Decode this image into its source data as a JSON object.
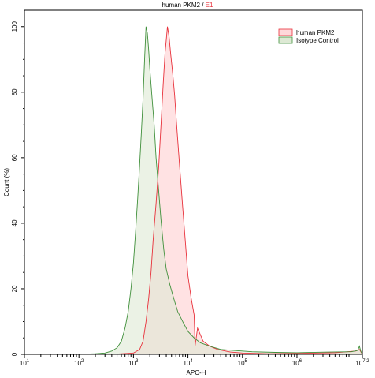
{
  "chart_data": {
    "type": "area",
    "title": {
      "prefix": "human PKM2 / ",
      "highlight": "E1",
      "highlight_color": "#e8303a"
    },
    "xlabel": "APC-H",
    "ylabel": "Count (%)",
    "x_scale": "log",
    "xlim": [
      10,
      15848932
    ],
    "ylim": [
      0,
      105
    ],
    "x_ticks": [
      {
        "value": 10,
        "base": "10",
        "exp": "1"
      },
      {
        "value": 100,
        "base": "10",
        "exp": "2"
      },
      {
        "value": 1000,
        "base": "10",
        "exp": "3"
      },
      {
        "value": 10000,
        "base": "10",
        "exp": "4"
      },
      {
        "value": 100000,
        "base": "10",
        "exp": "5"
      },
      {
        "value": 1000000,
        "base": "10",
        "exp": "6"
      },
      {
        "value": 15848932,
        "base": "10",
        "exp": "7.2"
      }
    ],
    "y_ticks": [
      0,
      20,
      40,
      60,
      80,
      100
    ],
    "legend_position": "top-right",
    "series": [
      {
        "name": "human PKM2",
        "line_color": "#e8303a",
        "fill_color": "#ffd8da",
        "points": [
          [
            10,
            0
          ],
          [
            100,
            0
          ],
          [
            500,
            0.1
          ],
          [
            1000,
            0.4
          ],
          [
            1300,
            1.5
          ],
          [
            1500,
            4
          ],
          [
            1700,
            10
          ],
          [
            1900,
            17
          ],
          [
            2100,
            25
          ],
          [
            2300,
            35
          ],
          [
            2600,
            46
          ],
          [
            2900,
            57
          ],
          [
            3200,
            70
          ],
          [
            3500,
            82
          ],
          [
            3800,
            92
          ],
          [
            4000,
            96
          ],
          [
            4200,
            100
          ],
          [
            4500,
            97
          ],
          [
            4800,
            92
          ],
          [
            5300,
            85
          ],
          [
            5700,
            79
          ],
          [
            6200,
            70
          ],
          [
            7000,
            58
          ],
          [
            8000,
            45
          ],
          [
            9000,
            34
          ],
          [
            10000,
            24
          ],
          [
            11500,
            17
          ],
          [
            13000,
            12
          ],
          [
            15000,
            8
          ],
          [
            19000,
            4
          ],
          [
            25000,
            2.5
          ],
          [
            35000,
            1.5
          ],
          [
            60000,
            0.7
          ],
          [
            100000,
            0.4
          ],
          [
            300000,
            0.2
          ],
          [
            1000000,
            0.3
          ],
          [
            5000000,
            0.5
          ],
          [
            12000000,
            1
          ],
          [
            13500,
            2.5
          ],
          [
            14000000,
            1.5
          ],
          [
            15848932,
            0
          ]
        ]
      },
      {
        "name": "Isotype Control",
        "line_color": "#3f8f3a",
        "fill_color": "#dde9d4",
        "points": [
          [
            10,
            0
          ],
          [
            100,
            0
          ],
          [
            200,
            0.2
          ],
          [
            300,
            0.4
          ],
          [
            400,
            1
          ],
          [
            500,
            2
          ],
          [
            600,
            4
          ],
          [
            700,
            8
          ],
          [
            800,
            13
          ],
          [
            900,
            20
          ],
          [
            1000,
            28
          ],
          [
            1100,
            38
          ],
          [
            1200,
            48
          ],
          [
            1300,
            58
          ],
          [
            1400,
            68
          ],
          [
            1500,
            78
          ],
          [
            1600,
            90
          ],
          [
            1700,
            100
          ],
          [
            1800,
            98
          ],
          [
            1900,
            93
          ],
          [
            2000,
            87
          ],
          [
            2200,
            78
          ],
          [
            2400,
            70
          ],
          [
            2600,
            60
          ],
          [
            2900,
            50
          ],
          [
            3200,
            41
          ],
          [
            3600,
            32
          ],
          [
            4000,
            26
          ],
          [
            4700,
            21
          ],
          [
            5500,
            17
          ],
          [
            6500,
            13
          ],
          [
            8000,
            10
          ],
          [
            10000,
            7
          ],
          [
            13000,
            5
          ],
          [
            17000,
            3.5
          ],
          [
            25000,
            2.5
          ],
          [
            40000,
            1.5
          ],
          [
            70000,
            1.2
          ],
          [
            150000,
            0.8
          ],
          [
            400000,
            0.6
          ],
          [
            1000000,
            0.5
          ],
          [
            4000000,
            0.7
          ],
          [
            10000000,
            0.8
          ],
          [
            13000000,
            1.2
          ],
          [
            14000000,
            2.5
          ],
          [
            14800000,
            1
          ],
          [
            15848932,
            0
          ]
        ]
      }
    ]
  }
}
